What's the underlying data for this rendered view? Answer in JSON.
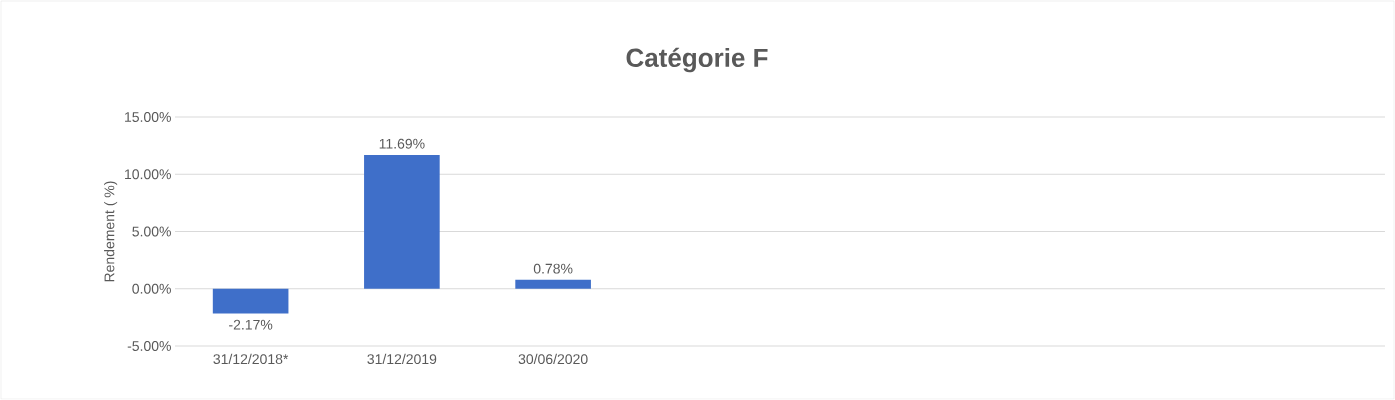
{
  "chart_data": {
    "type": "bar",
    "title": "Catégorie F",
    "ylabel": "Rendement ( %)",
    "categories": [
      "31/12/2018*",
      "31/12/2019",
      "30/06/2020",
      null,
      null,
      null,
      null,
      null
    ],
    "values": [
      -2.17,
      11.69,
      0.78,
      null,
      null,
      null,
      null,
      null
    ],
    "value_labels": [
      "-2.17%",
      "11.69%",
      "0.78%",
      null,
      null,
      null,
      null,
      null
    ],
    "color": "#3f6fc9",
    "ylim": [
      -5,
      15
    ],
    "yticks": [
      {
        "value": -5,
        "label": "-5.00%"
      },
      {
        "value": 0,
        "label": "0.00%"
      },
      {
        "value": 5,
        "label": "5.00%"
      },
      {
        "value": 10,
        "label": "10.00%"
      },
      {
        "value": 15,
        "label": "15.00%"
      }
    ],
    "grid": "y"
  }
}
